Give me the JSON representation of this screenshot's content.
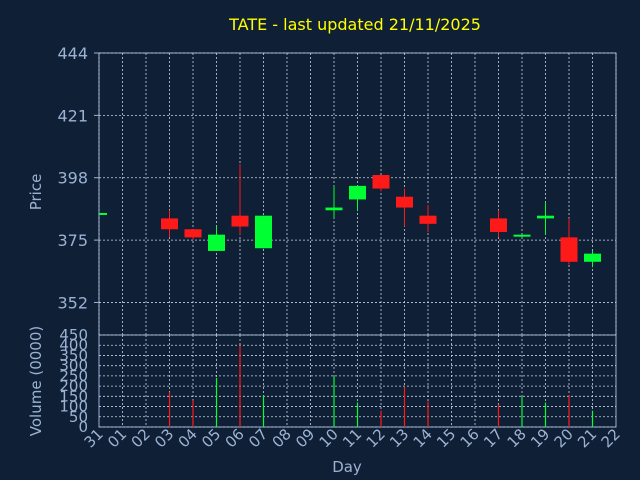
{
  "chart_data": [
    {
      "type": "candlestick",
      "title": "TATE - last updated 21/11/2025",
      "ylabel": "Price",
      "ylim": [
        340,
        444
      ],
      "yticks": [
        352,
        375,
        398,
        421,
        444
      ],
      "grid": true,
      "x_categories": [
        "31",
        "01",
        "02",
        "03",
        "04",
        "05",
        "06",
        "07",
        "08",
        "09",
        "10",
        "11",
        "12",
        "13",
        "14",
        "15",
        "16",
        "17",
        "18",
        "19",
        "20",
        "21",
        "22"
      ],
      "candles": [
        {
          "day": "31",
          "open": 385,
          "high": 385,
          "low": 385,
          "close": 385
        },
        {
          "day": "03",
          "open": 383,
          "high": 386,
          "low": 376,
          "close": 379
        },
        {
          "day": "04",
          "open": 379,
          "high": 379,
          "low": 375,
          "close": 376
        },
        {
          "day": "05",
          "open": 371,
          "high": 380,
          "low": 371,
          "close": 377
        },
        {
          "day": "06",
          "open": 384,
          "high": 403,
          "low": 377,
          "close": 380
        },
        {
          "day": "07",
          "open": 372,
          "high": 384,
          "low": 372,
          "close": 384
        },
        {
          "day": "10",
          "open": 386,
          "high": 395,
          "low": 383,
          "close": 387
        },
        {
          "day": "11",
          "open": 390,
          "high": 395,
          "low": 386,
          "close": 395
        },
        {
          "day": "12",
          "open": 399,
          "high": 399,
          "low": 393,
          "close": 394
        },
        {
          "day": "13",
          "open": 391,
          "high": 394,
          "low": 380,
          "close": 387
        },
        {
          "day": "14",
          "open": 384,
          "high": 388,
          "low": 378,
          "close": 381
        },
        {
          "day": "17",
          "open": 383,
          "high": 386,
          "low": 376,
          "close": 378
        },
        {
          "day": "18",
          "open": 377,
          "high": 377,
          "low": 376,
          "close": 377
        },
        {
          "day": "19",
          "open": 383,
          "high": 389,
          "low": 377,
          "close": 384
        },
        {
          "day": "20",
          "open": 376,
          "high": 383,
          "low": 366,
          "close": 367
        },
        {
          "day": "21",
          "open": 367,
          "high": 371,
          "low": 365,
          "close": 370
        }
      ]
    },
    {
      "type": "bar",
      "ylabel": "Volume (0000)",
      "xlabel": "Day",
      "ylim": [
        0,
        450
      ],
      "yticks": [
        0,
        50,
        100,
        150,
        200,
        250,
        300,
        350,
        400,
        450
      ],
      "x_categories": [
        "31",
        "01",
        "02",
        "03",
        "04",
        "05",
        "06",
        "07",
        "08",
        "09",
        "10",
        "11",
        "12",
        "13",
        "14",
        "15",
        "16",
        "17",
        "18",
        "19",
        "20",
        "21",
        "22"
      ],
      "series": [
        {
          "days": [
            "03",
            "04",
            "05",
            "06",
            "07",
            "10",
            "11",
            "12",
            "13",
            "14",
            "17",
            "18",
            "19",
            "20",
            "21"
          ],
          "values": [
            170,
            130,
            240,
            400,
            155,
            250,
            120,
            80,
            195,
            125,
            110,
            150,
            120,
            155,
            80
          ],
          "colors": [
            "#ff1a1a",
            "#ff1a1a",
            "#00ff33",
            "#ff1a1a",
            "#00ff33",
            "#00ff33",
            "#00ff33",
            "#ff1a1a",
            "#ff1a1a",
            "#ff1a1a",
            "#ff1a1a",
            "#00ff33",
            "#00ff33",
            "#ff1a1a",
            "#00ff33"
          ]
        }
      ]
    }
  ],
  "colors": {
    "up": "#00ff33",
    "down": "#ff1a1a",
    "background": "#0f1f35",
    "text": "#9bb3d3",
    "title": "#ffff00"
  }
}
